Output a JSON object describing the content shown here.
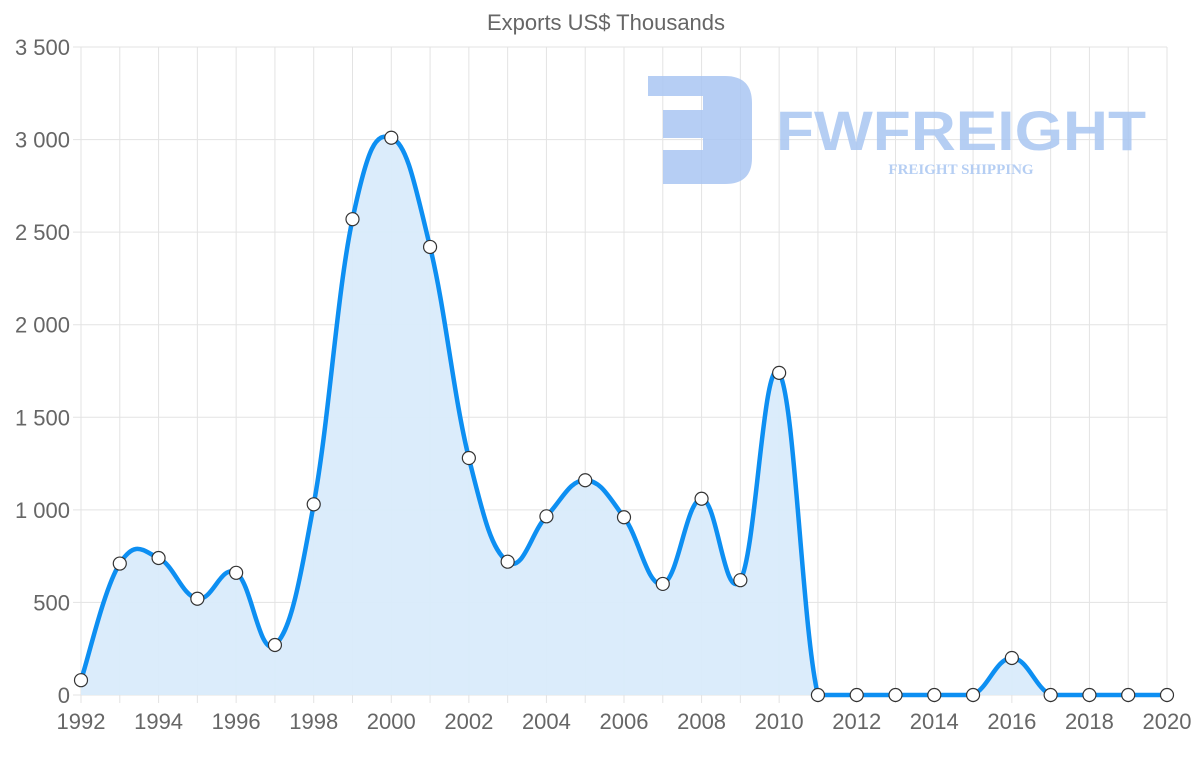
{
  "chart_data": {
    "type": "line",
    "title": "Exports US$ Thousands",
    "xlabel": "",
    "ylabel": "",
    "x": [
      1992,
      1993,
      1994,
      1995,
      1996,
      1997,
      1998,
      1999,
      2000,
      2001,
      2002,
      2003,
      2004,
      2005,
      2006,
      2007,
      2008,
      2009,
      2010,
      2011,
      2012,
      2013,
      2014,
      2015,
      2016,
      2017,
      2018,
      2019,
      2020
    ],
    "series": [
      {
        "name": "Exports US$ Thousands",
        "values": [
          80,
          710,
          740,
          520,
          660,
          270,
          1030,
          2570,
          3010,
          2420,
          1280,
          720,
          965,
          1160,
          960,
          600,
          1060,
          620,
          1740,
          0,
          0,
          0,
          0,
          0,
          200,
          0,
          0,
          0,
          0
        ]
      }
    ],
    "ylim": [
      0,
      3500
    ],
    "xlim": [
      1992,
      2020
    ],
    "y_ticks": [
      "0",
      "500",
      "1 000",
      "1 500",
      "2 000",
      "2 500",
      "3 000",
      "3 500"
    ],
    "x_ticks": [
      "1992",
      "1994",
      "1996",
      "1998",
      "2000",
      "2002",
      "2004",
      "2006",
      "2008",
      "2010",
      "2012",
      "2014",
      "2016",
      "2018",
      "2020"
    ],
    "grid": true,
    "fill": true,
    "colors": {
      "line": "#0d8ff2",
      "fill": "#d9ebfb",
      "grid": "#e3e3e3",
      "text": "#666666",
      "watermark": "#a9c6f2"
    }
  },
  "watermark": {
    "brand": "FWFREIGHT",
    "tagline": "FREIGHT SHIPPING"
  }
}
